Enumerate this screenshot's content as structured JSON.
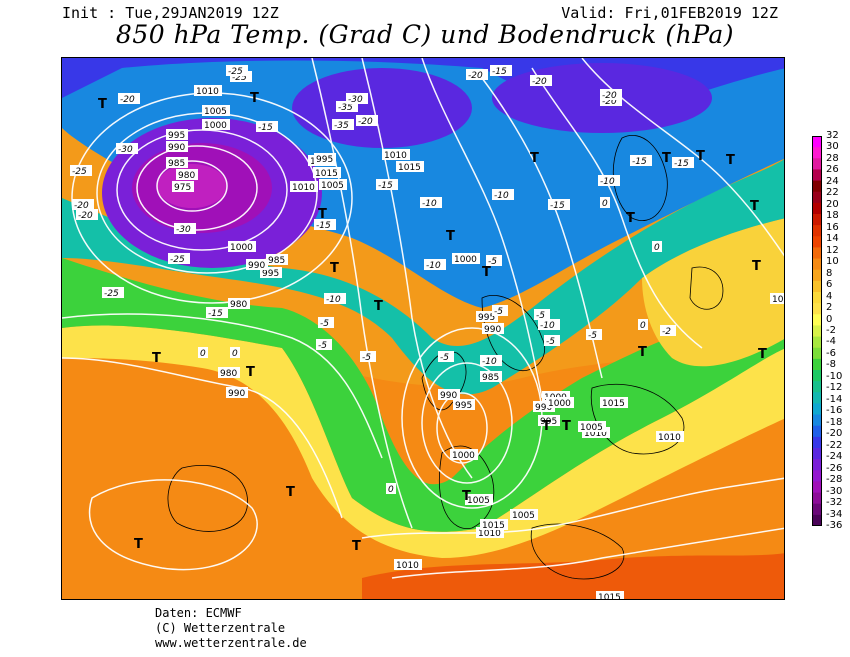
{
  "header": {
    "init": "Init : Tue,29JAN2019 12Z",
    "valid": "Valid: Fri,01FEB2019 12Z",
    "title": "850 hPa Temp. (Grad C) und Bodendruck (hPa)"
  },
  "footer": {
    "line1": "Daten: ECMWF",
    "line2": "(C) Wetterzentrale",
    "line3": "www.wetterzentrale.de"
  },
  "legend": {
    "ticks": [
      "32",
      "30",
      "28",
      "26",
      "24",
      "22",
      "20",
      "18",
      "16",
      "14",
      "12",
      "10",
      "8",
      "6",
      "4",
      "2",
      "0",
      "-2",
      "-4",
      "-6",
      "-8",
      "-10",
      "-12",
      "-14",
      "-16",
      "-18",
      "-20",
      "-22",
      "-24",
      "-26",
      "-28",
      "-30",
      "-32",
      "-34",
      "-36"
    ],
    "colors": [
      "#ff00ff",
      "#ff1ad1",
      "#e01aa0",
      "#b3004d",
      "#800000",
      "#99001a",
      "#b30000",
      "#cc1a00",
      "#e03300",
      "#ee4400",
      "#f26a0a",
      "#f58a14",
      "#f7a51e",
      "#f9c12a",
      "#fbd93a",
      "#fde24a",
      "#ffff55",
      "#d8f24a",
      "#a8e840",
      "#7cde3a",
      "#3cd23c",
      "#1cc864",
      "#18c08c",
      "#14b8b0",
      "#10a8d0",
      "#1888e0",
      "#2060e8",
      "#3838e8",
      "#5a28e0",
      "#7a20d8",
      "#9418d0",
      "#a010b8",
      "#8c0c98",
      "#6a0878",
      "#4a0458"
    ]
  },
  "map": {
    "pressure_labels": [
      "995",
      "990",
      "985",
      "980",
      "975",
      "1010",
      "1000",
      "1005",
      "1010",
      "1015",
      "1005",
      "1000",
      "995",
      "990",
      "985",
      "980",
      "980",
      "990",
      "995",
      "1010",
      "1010",
      "1015",
      "1000",
      "995",
      "990",
      "985",
      "990",
      "995",
      "1000",
      "1005",
      "1010",
      "1015",
      "1005",
      "1010",
      "1015",
      "1010",
      "1000",
      "1005",
      "1010",
      "1015",
      "990",
      "995",
      "1000",
      "1015"
    ],
    "temp_labels": [
      "-25",
      "-20",
      "-25",
      "-15",
      "-20",
      "-30",
      "-25",
      "-35",
      "-30",
      "-25",
      "-20",
      "-15",
      "-10",
      "-5",
      "-5",
      "-10",
      "-15",
      "-20",
      "-20",
      "-15",
      "-10",
      "-15",
      "-10",
      "-5",
      "-5",
      "0",
      "-5",
      "-10",
      "-5",
      "-5",
      "0",
      "0",
      "-2",
      "-20",
      "-15",
      "-10",
      "-5",
      "0",
      "-30",
      "-35",
      "-25",
      "-20",
      "-15",
      "0",
      "0",
      "-15",
      "-20",
      "-10",
      "-5"
    ],
    "high_low_marks": [
      "T",
      "T",
      "T",
      "T",
      "T",
      "T",
      "T",
      "T",
      "T",
      "T",
      "T",
      "T",
      "T",
      "T",
      "T",
      "T",
      "T",
      "T",
      "T",
      "T",
      "T",
      "T",
      "T",
      "T"
    ]
  }
}
